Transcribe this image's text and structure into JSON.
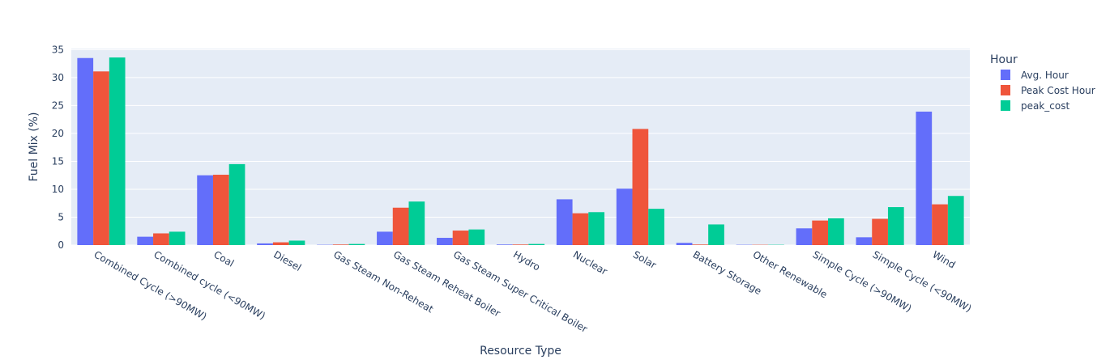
{
  "chart_data": {
    "type": "bar",
    "title": "",
    "xlabel": "Resource Type",
    "ylabel": "Fuel Mix (%)",
    "ylim": [
      0,
      35.2
    ],
    "yticks": [
      0,
      5,
      10,
      15,
      20,
      25,
      30,
      35
    ],
    "grid": true,
    "legend_title": "Hour",
    "legend_position": "right",
    "categories": [
      "Combined Cycle (>90MW)",
      "Combined cycle (<90MW)",
      "Coal",
      "Diesel",
      "Gas Steam Non-Reheat",
      "Gas Steam Reheat Boiler",
      "Gas Steam Super Critical Boiler",
      "Hydro",
      "Nuclear",
      "Solar",
      "Battery Storage",
      "Other Renewable",
      "Simple Cycle (>90MW)",
      "Simple Cycle (<90MW)",
      "Wind"
    ],
    "series": [
      {
        "name": "Avg. Hour",
        "color": "#636efa",
        "values": [
          33.5,
          1.5,
          12.5,
          0.3,
          0.05,
          2.4,
          1.3,
          0.1,
          8.2,
          10.1,
          0.4,
          0.05,
          3.0,
          1.4,
          23.9
        ]
      },
      {
        "name": "Peak Cost Hour",
        "color": "#ef553b",
        "values": [
          31.1,
          2.1,
          12.6,
          0.5,
          0.1,
          6.7,
          2.6,
          0.1,
          5.7,
          20.8,
          0.1,
          0.05,
          4.4,
          4.7,
          7.3
        ]
      },
      {
        "name": "peak_cost",
        "color": "#00cc96",
        "values": [
          33.6,
          2.4,
          14.5,
          0.8,
          0.2,
          7.8,
          2.8,
          0.2,
          5.9,
          6.5,
          3.7,
          0.05,
          4.8,
          6.8,
          8.8
        ]
      }
    ]
  }
}
